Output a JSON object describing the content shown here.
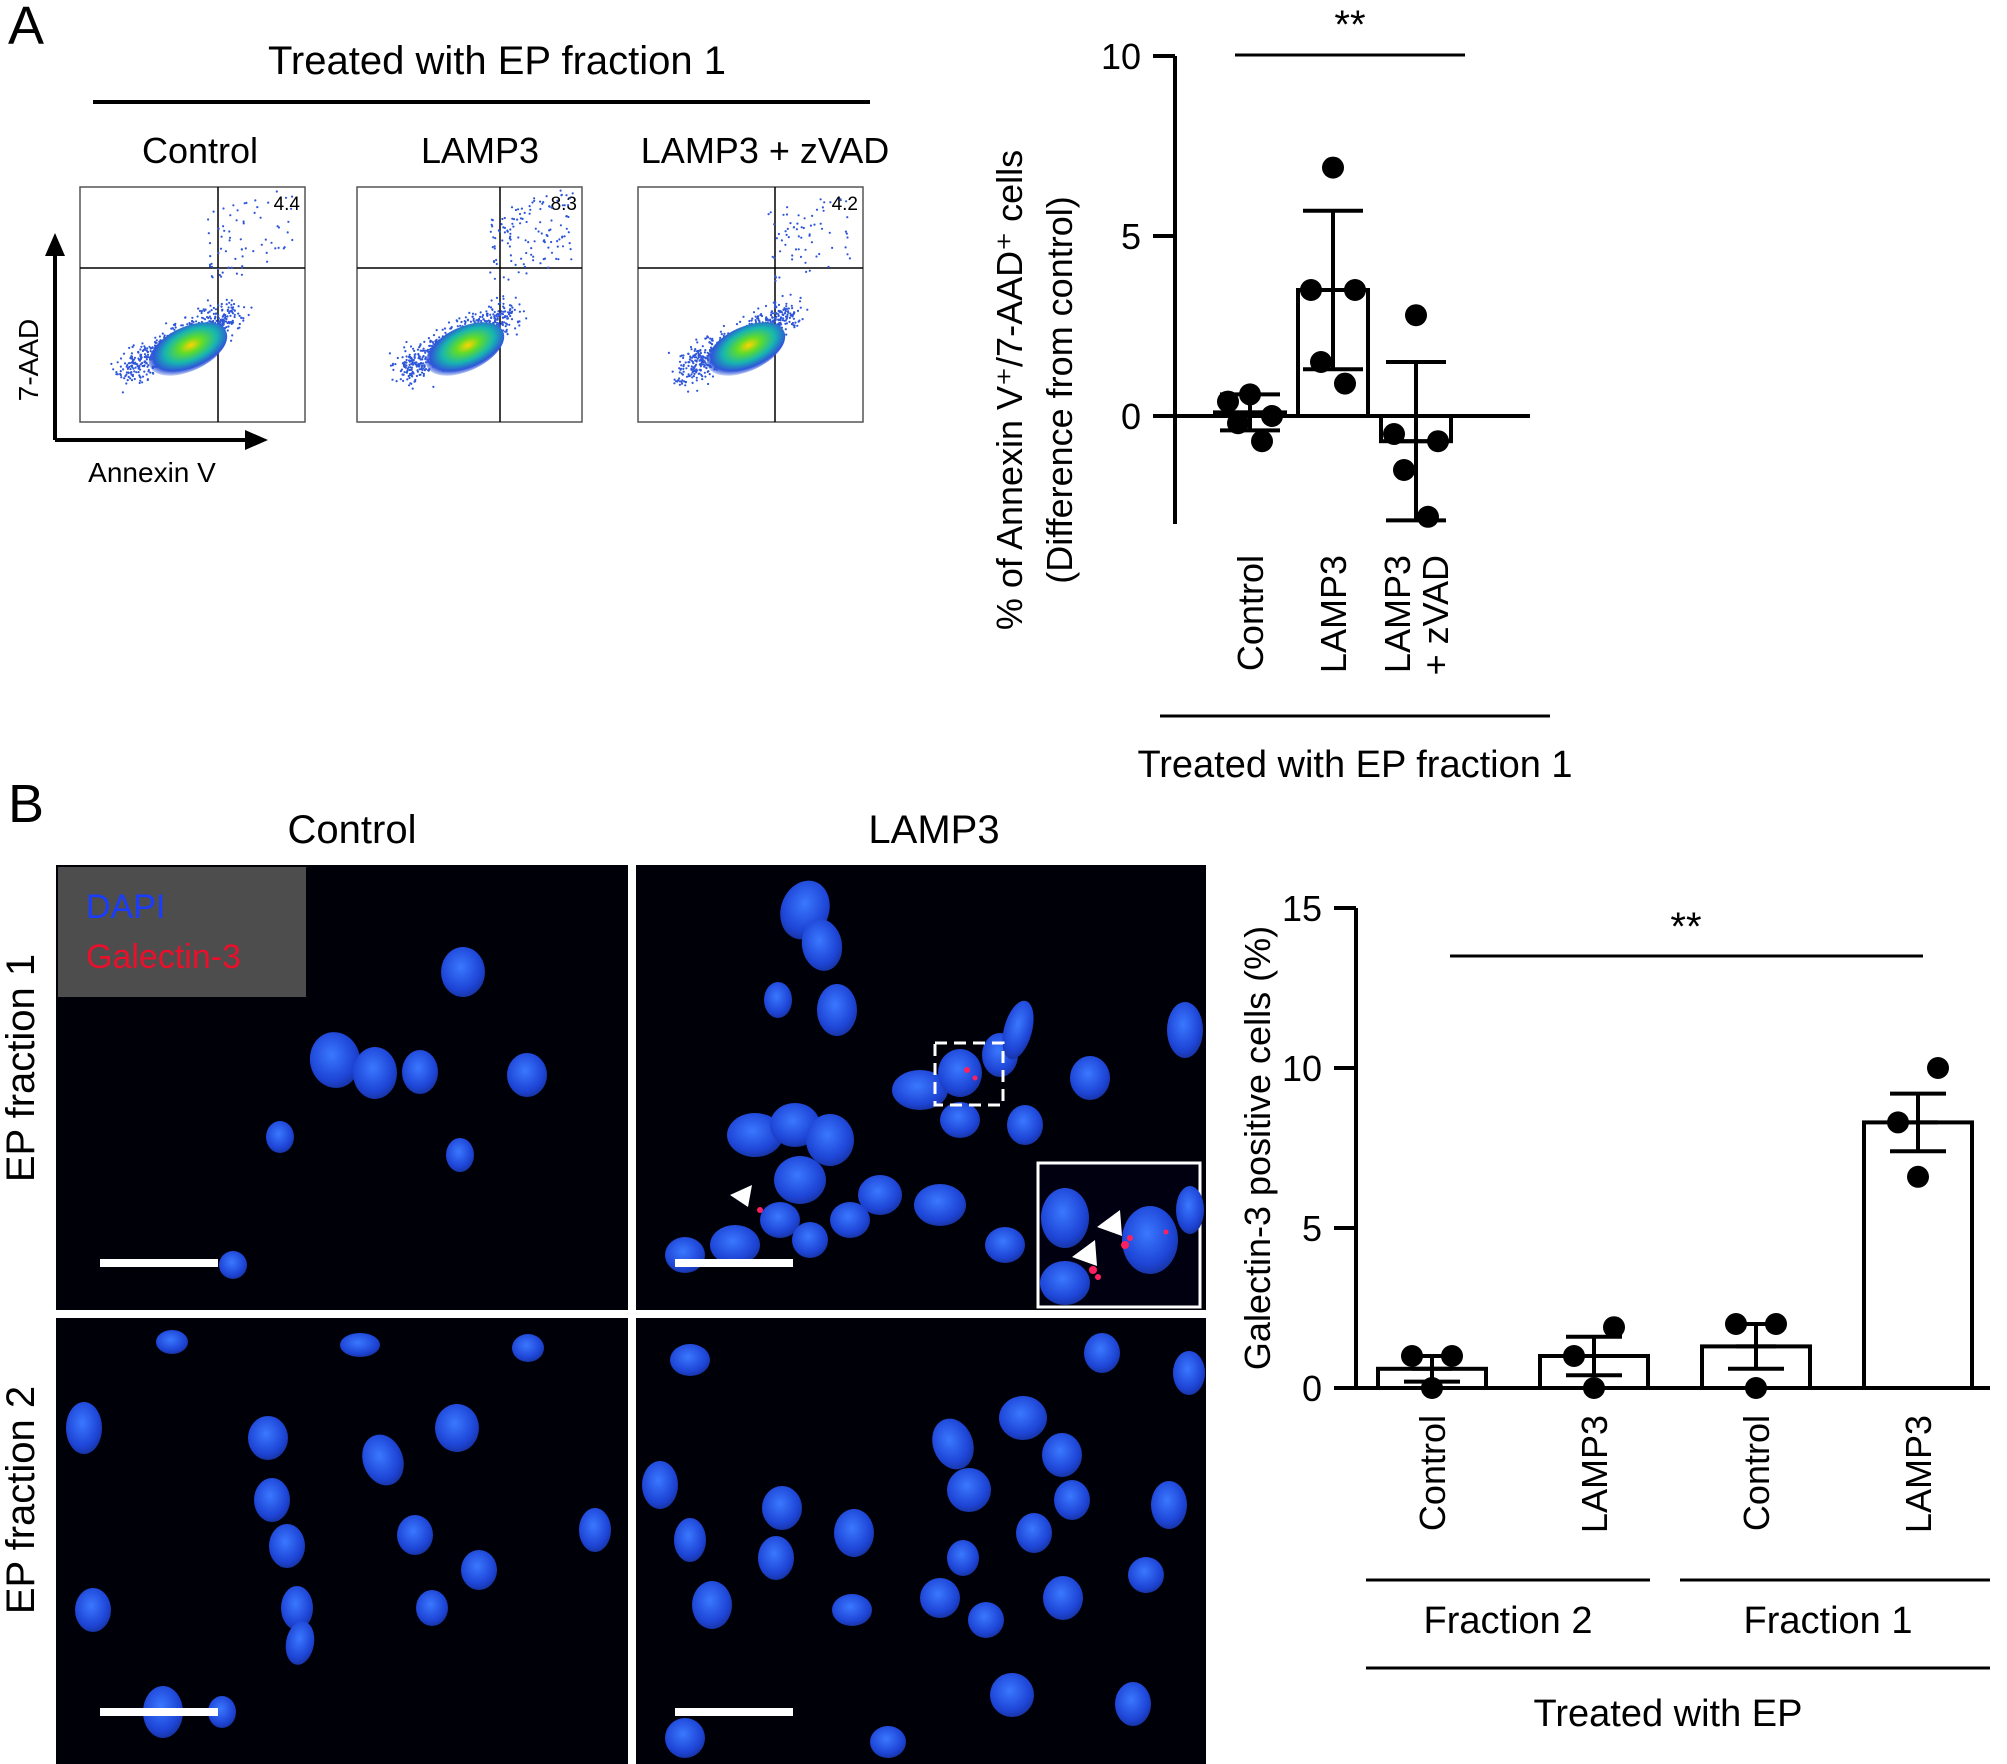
{
  "panel_a": {
    "label": "A",
    "treatment_header": "Treated with EP fraction 1",
    "flow": {
      "y_axis_label": "7-AAD",
      "x_axis_label": "Annexin V",
      "plots": [
        {
          "title": "Control",
          "value": "4.4"
        },
        {
          "title": "LAMP3",
          "value": "8.3"
        },
        {
          "title": "LAMP3 + zVAD",
          "value": "4.2"
        }
      ]
    }
  },
  "panel_b": {
    "label": "B",
    "column_titles": [
      "Control",
      "LAMP3"
    ],
    "row_labels": [
      "EP fraction 1",
      "EP fraction 2"
    ],
    "legend": {
      "dapi": "DAPI",
      "galectin": "Galectin-3"
    },
    "colors": {
      "dapi": "#1a3cff",
      "galectin": "#e8102a",
      "legend_bg": "#4d4d4d",
      "nucleus": "#1f4ae0"
    }
  },
  "chart_data": [
    {
      "type": "bar",
      "ylabel_line1": "% of Annexin V⁺/7-AAD⁺ cells",
      "ylabel_line2": "(Difference from control)",
      "categories": [
        {
          "lines": [
            "Control"
          ]
        },
        {
          "lines": [
            "LAMP3"
          ]
        },
        {
          "lines": [
            "LAMP3",
            "+ zVAD"
          ]
        }
      ],
      "values": [
        0.1,
        3.5,
        -0.7
      ],
      "errors": [
        0.5,
        2.2,
        2.2
      ],
      "points": [
        [
          0.6,
          0.4,
          0.0,
          -0.2,
          -0.7
        ],
        [
          6.9,
          3.5,
          3.5,
          1.5,
          0.9
        ],
        [
          2.8,
          -0.5,
          -0.7,
          -1.5,
          -2.8
        ]
      ],
      "ylim": [
        -3,
        10
      ],
      "yticks": [
        0,
        5,
        10
      ],
      "significance": "**",
      "group_label": "Treated with EP fraction 1"
    },
    {
      "type": "bar",
      "ylabel": "Galectin-3 positive cells (%)",
      "categories": [
        "Control",
        "LAMP3",
        "Control",
        "LAMP3"
      ],
      "values": [
        0.6,
        1.0,
        1.3,
        8.3
      ],
      "errors": [
        0.4,
        0.6,
        0.7,
        0.9
      ],
      "points": [
        [
          1.0,
          1.0,
          0.0
        ],
        [
          1.9,
          1.0,
          0.0
        ],
        [
          2.0,
          2.0,
          0.0
        ],
        [
          10.0,
          8.3,
          6.6
        ]
      ],
      "ylim": [
        0,
        15
      ],
      "yticks": [
        0,
        5,
        10,
        15
      ],
      "significance": "**",
      "subgroups": [
        "Fraction 2",
        "Fraction 1"
      ],
      "group_label": "Treated with EP"
    }
  ]
}
